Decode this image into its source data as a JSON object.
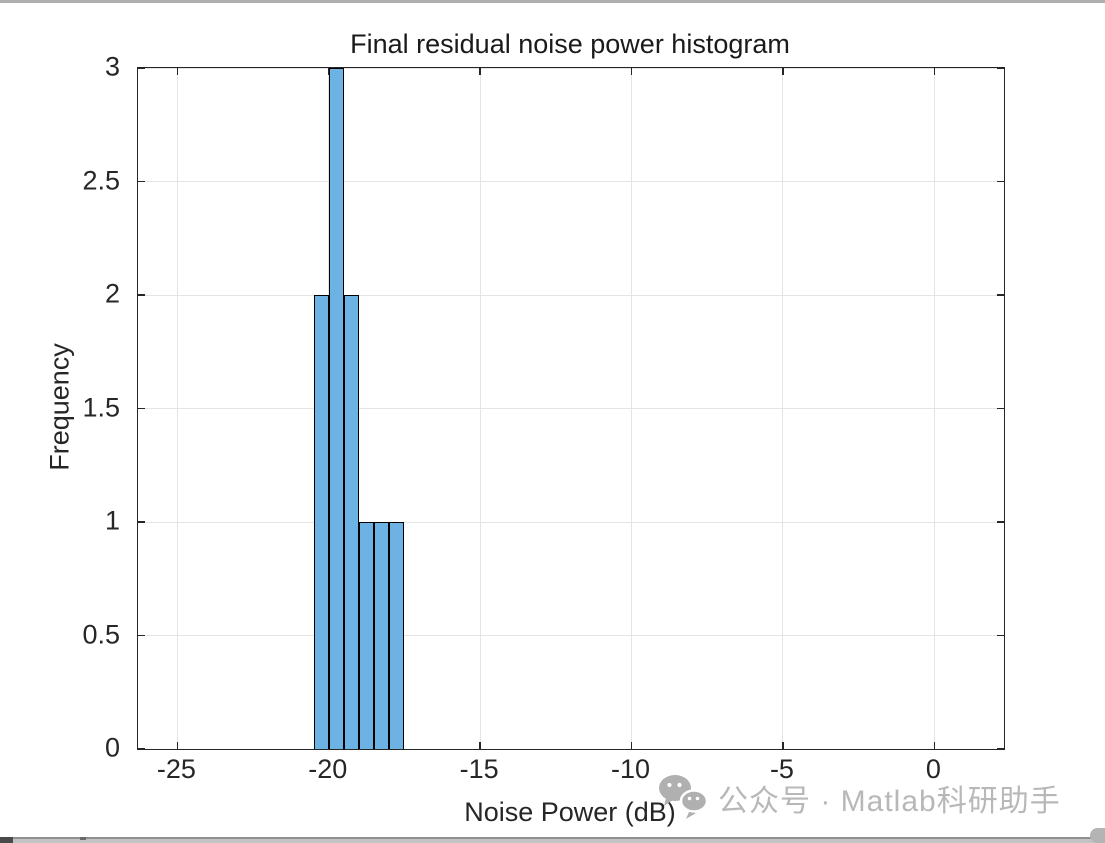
{
  "chart_data": {
    "type": "bar",
    "subtype": "histogram",
    "title": "Final residual noise power histogram",
    "xlabel": "Noise Power (dB)",
    "ylabel": "Frequency",
    "xlim": [
      -26.3,
      2.3
    ],
    "ylim": [
      0,
      3
    ],
    "xticks": [
      -25,
      -20,
      -15,
      -10,
      -5,
      0
    ],
    "yticks": [
      0,
      0.5,
      1,
      1.5,
      2,
      2.5,
      3
    ],
    "grid": true,
    "legend": null,
    "bin_edges": [
      -20.5,
      -20,
      -19.5,
      -19,
      -18.5,
      -18,
      -17.5
    ],
    "counts": [
      2,
      3,
      2,
      1,
      1,
      1
    ],
    "bar_color": "#6cb3e3",
    "bar_edge_color": "#000000",
    "axis_color": "#262626",
    "grid_color": "#e4e4e4"
  },
  "watermark": {
    "icon": "wechat-icon",
    "text": "公众号 · Matlab科研助手",
    "color": "#b8b8b8"
  }
}
